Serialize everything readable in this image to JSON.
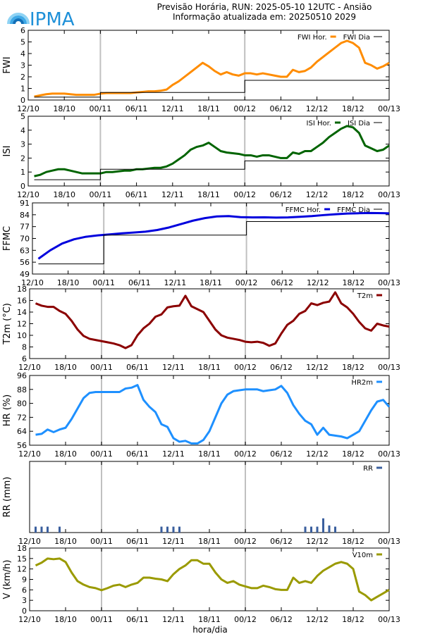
{
  "header": {
    "title": "Previsão Horária, RUN: 2025-05-10 12UTC - Ansião",
    "subtitle": "Informação atualizada em: 20250510 2029",
    "logo_text": "IPMA",
    "logo_color": "#1e90d8"
  },
  "chart_data": [
    {
      "type": "line",
      "ylabel": "FWI",
      "ylim": [
        0,
        6
      ],
      "yticks": [
        0,
        1,
        2,
        3,
        4,
        5,
        6
      ],
      "xlim": [
        0,
        60
      ],
      "xtick_labels": [
        "12/10",
        "18/10",
        "00/11",
        "06/11",
        "12/11",
        "18/11",
        "00/12",
        "06/12",
        "12/12",
        "18/12",
        "00/13"
      ],
      "day_markers": [
        12,
        36
      ],
      "series": [
        {
          "name": "FWI Hor.",
          "color": "#ff8c00",
          "style": "thick",
          "x": [
            1,
            2,
            3,
            4,
            5,
            6,
            7,
            8,
            9,
            10,
            11,
            12,
            13,
            14,
            15,
            16,
            17,
            18,
            19,
            20,
            21,
            22,
            23,
            24,
            25,
            26,
            27,
            28,
            29,
            30,
            31,
            32,
            33,
            34,
            35,
            36,
            37,
            38,
            39,
            40,
            41,
            42,
            43,
            44,
            45,
            46,
            47,
            48,
            49,
            50,
            51,
            52,
            53,
            54,
            55,
            56,
            57,
            58,
            59,
            60
          ],
          "y": [
            0.3,
            0.4,
            0.5,
            0.55,
            0.55,
            0.55,
            0.5,
            0.45,
            0.45,
            0.45,
            0.45,
            0.55,
            0.6,
            0.6,
            0.6,
            0.6,
            0.6,
            0.65,
            0.7,
            0.75,
            0.75,
            0.8,
            0.9,
            1.3,
            1.6,
            2.0,
            2.4,
            2.8,
            3.2,
            2.9,
            2.5,
            2.2,
            2.4,
            2.2,
            2.1,
            2.3,
            2.3,
            2.2,
            2.3,
            2.2,
            2.1,
            2.0,
            2.0,
            2.6,
            2.4,
            2.5,
            2.8,
            3.3,
            3.7,
            4.1,
            4.5,
            4.9,
            5.1,
            4.9,
            4.5,
            3.2,
            3.0,
            2.7,
            2.9,
            3.2
          ]
        },
        {
          "name": "FWI Dia",
          "color": "#000000",
          "style": "step",
          "x": [
            1,
            12,
            12,
            36,
            36,
            60
          ],
          "y": [
            0.25,
            0.25,
            0.65,
            0.65,
            1.7,
            1.7
          ]
        }
      ]
    },
    {
      "type": "line",
      "ylabel": "ISI",
      "ylim": [
        0,
        5
      ],
      "yticks": [
        0,
        1,
        2,
        3,
        4,
        5
      ],
      "xlim": [
        0,
        60
      ],
      "xtick_labels": [
        "12/10",
        "18/10",
        "00/11",
        "06/11",
        "12/11",
        "18/11",
        "00/12",
        "06/12",
        "12/12",
        "18/12",
        "00/13"
      ],
      "day_markers": [
        12,
        36
      ],
      "series": [
        {
          "name": "ISI Hor.",
          "color": "#006400",
          "style": "thick",
          "x": [
            1,
            2,
            3,
            4,
            5,
            6,
            7,
            8,
            9,
            10,
            11,
            12,
            13,
            14,
            15,
            16,
            17,
            18,
            19,
            20,
            21,
            22,
            23,
            24,
            25,
            26,
            27,
            28,
            29,
            30,
            31,
            32,
            33,
            34,
            35,
            36,
            37,
            38,
            39,
            40,
            41,
            42,
            43,
            44,
            45,
            46,
            47,
            48,
            49,
            50,
            51,
            52,
            53,
            54,
            55,
            56,
            57,
            58,
            59,
            60
          ],
          "y": [
            0.7,
            0.8,
            1.0,
            1.1,
            1.2,
            1.2,
            1.1,
            1.0,
            0.9,
            0.9,
            0.9,
            0.9,
            1.0,
            1.0,
            1.05,
            1.1,
            1.1,
            1.2,
            1.2,
            1.25,
            1.3,
            1.3,
            1.4,
            1.6,
            1.9,
            2.2,
            2.6,
            2.8,
            2.9,
            3.1,
            2.8,
            2.5,
            2.4,
            2.35,
            2.3,
            2.2,
            2.2,
            2.1,
            2.2,
            2.2,
            2.1,
            2.0,
            2.0,
            2.4,
            2.3,
            2.5,
            2.5,
            2.8,
            3.1,
            3.5,
            3.8,
            4.1,
            4.3,
            4.2,
            3.8,
            2.9,
            2.7,
            2.5,
            2.6,
            2.9
          ]
        },
        {
          "name": "ISI Dia",
          "color": "#000000",
          "style": "step",
          "x": [
            1,
            12,
            12,
            36,
            36,
            60
          ],
          "y": [
            0.45,
            0.45,
            1.2,
            1.2,
            1.8,
            1.8
          ]
        }
      ]
    },
    {
      "type": "line",
      "ylabel": "FFMC",
      "ylim": [
        49,
        91
      ],
      "yticks": [
        49,
        56,
        63,
        70,
        77,
        84,
        91
      ],
      "xlim": [
        0,
        60
      ],
      "xtick_labels": [
        "12/10",
        "18/10",
        "00/11",
        "06/11",
        "12/11",
        "18/11",
        "00/12",
        "06/12",
        "12/12",
        "18/12",
        "00/13"
      ],
      "day_markers": [
        12,
        36
      ],
      "series": [
        {
          "name": "FFMC Hor.",
          "color": "#0000dd",
          "style": "thick",
          "x": [
            1,
            3,
            5,
            7,
            9,
            11,
            13,
            15,
            17,
            19,
            21,
            23,
            25,
            27,
            29,
            31,
            33,
            35,
            37,
            39,
            41,
            43,
            45,
            47,
            49,
            51,
            53,
            55,
            57,
            59,
            60
          ],
          "y": [
            58,
            63,
            67,
            69.5,
            71,
            71.8,
            72.4,
            73,
            73.5,
            74,
            75,
            76.5,
            78.5,
            80.5,
            82,
            83,
            83.2,
            82.6,
            82.4,
            82.5,
            82.3,
            82.4,
            82.8,
            83.2,
            83.8,
            84.3,
            84.7,
            84.9,
            85,
            84.9,
            84.8
          ]
        },
        {
          "name": "FFMC Dia",
          "color": "#000000",
          "style": "step",
          "x": [
            1,
            12,
            12,
            36,
            36,
            60
          ],
          "y": [
            55,
            55,
            72,
            72,
            80,
            80
          ]
        }
      ]
    },
    {
      "type": "line",
      "ylabel": "T2m (°C)",
      "ylim": [
        6,
        18
      ],
      "yticks": [
        6,
        8,
        10,
        12,
        14,
        16,
        18
      ],
      "xlim": [
        0,
        60
      ],
      "xtick_labels": [
        "12/10",
        "18/10",
        "00/11",
        "06/11",
        "12/11",
        "18/11",
        "00/12",
        "06/12",
        "12/12",
        "18/12",
        "00/13"
      ],
      "day_markers": [
        12,
        36
      ],
      "series": [
        {
          "name": "T2m",
          "color": "#8b0000",
          "style": "thick",
          "x": [
            1,
            2,
            3,
            4,
            5,
            6,
            7,
            8,
            9,
            10,
            11,
            12,
            13,
            14,
            15,
            16,
            17,
            18,
            19,
            20,
            21,
            22,
            23,
            24,
            25,
            26,
            27,
            28,
            29,
            30,
            31,
            32,
            33,
            34,
            35,
            36,
            37,
            38,
            39,
            40,
            41,
            42,
            43,
            44,
            45,
            46,
            47,
            48,
            49,
            50,
            51,
            52,
            53,
            54,
            55,
            56,
            57,
            58,
            59,
            60
          ],
          "y": [
            15.5,
            15.1,
            14.9,
            14.9,
            14.2,
            13.7,
            12.5,
            11.0,
            9.9,
            9.4,
            9.2,
            9.0,
            8.8,
            8.6,
            8.3,
            7.8,
            8.3,
            10.0,
            11.2,
            12.0,
            13.2,
            13.6,
            14.8,
            15.0,
            15.1,
            16.8,
            15.0,
            14.5,
            14.0,
            12.5,
            11.0,
            10.0,
            9.6,
            9.4,
            9.2,
            8.9,
            8.8,
            8.9,
            8.7,
            8.2,
            8.6,
            10.3,
            11.8,
            12.5,
            13.7,
            14.2,
            15.5,
            15.2,
            15.6,
            15.8,
            17.4,
            15.5,
            14.8,
            13.7,
            12.3,
            11.2,
            10.8,
            12.0,
            11.7,
            11.5
          ]
        }
      ]
    },
    {
      "type": "line",
      "ylabel": "HR (%)",
      "ylim": [
        56,
        96
      ],
      "yticks": [
        56,
        64,
        72,
        80,
        88,
        96
      ],
      "xlim": [
        0,
        60
      ],
      "xtick_labels": [
        "12/10",
        "18/10",
        "00/11",
        "06/11",
        "12/11",
        "18/11",
        "00/12",
        "06/12",
        "12/12",
        "18/12",
        "00/13"
      ],
      "day_markers": [
        12,
        36
      ],
      "series": [
        {
          "name": "HR2m",
          "color": "#1e90ff",
          "style": "thick",
          "x": [
            1,
            2,
            3,
            4,
            5,
            6,
            7,
            8,
            9,
            10,
            11,
            12,
            13,
            14,
            15,
            16,
            17,
            18,
            19,
            20,
            21,
            22,
            23,
            24,
            25,
            26,
            27,
            28,
            29,
            30,
            31,
            32,
            33,
            34,
            35,
            36,
            37,
            38,
            39,
            40,
            41,
            42,
            43,
            44,
            45,
            46,
            47,
            48,
            49,
            50,
            51,
            52,
            53,
            54,
            55,
            56,
            57,
            58,
            59,
            60
          ],
          "y": [
            62,
            62.5,
            65,
            63.5,
            65,
            66,
            71,
            77,
            83,
            86,
            86.5,
            86.5,
            86.5,
            86.5,
            86.5,
            88.5,
            89,
            90.5,
            82,
            78,
            75,
            68,
            66.5,
            60,
            58,
            58.5,
            57,
            57,
            59,
            64,
            72,
            80,
            85,
            87,
            87.5,
            88,
            88,
            88,
            87,
            87.5,
            88,
            90,
            86,
            79,
            74,
            70,
            68,
            62,
            66,
            62,
            61.5,
            61,
            60,
            62,
            64,
            70,
            76,
            81,
            82,
            78
          ]
        }
      ]
    },
    {
      "type": "bar",
      "ylabel": "RR (mm)",
      "ylim": [
        0,
        12
      ],
      "yticks": [],
      "xlim": [
        0,
        60
      ],
      "xtick_labels": [
        "12/10",
        "18/10",
        "00/11",
        "06/11",
        "12/11",
        "18/11",
        "00/12",
        "06/12",
        "12/12",
        "18/12",
        "00/13"
      ],
      "day_markers": [
        12,
        36
      ],
      "series": [
        {
          "name": "RR",
          "color": "#3a5f9e",
          "style": "bar",
          "x": [
            1,
            2,
            3,
            5,
            22,
            23,
            24,
            25,
            46,
            47,
            48,
            49,
            50,
            51
          ],
          "y": [
            1,
            1,
            1,
            1,
            1,
            1,
            1,
            1,
            1,
            1,
            1,
            2.4,
            1.2,
            1
          ]
        }
      ]
    },
    {
      "type": "line",
      "ylabel": "V (km/h)",
      "ylim": [
        0,
        18
      ],
      "yticks": [
        0,
        3,
        6,
        9,
        12,
        15,
        18
      ],
      "xlim": [
        0,
        60
      ],
      "xtick_labels": [
        "12/10",
        "18/10",
        "00/11",
        "06/11",
        "12/11",
        "18/11",
        "00/12",
        "06/12",
        "12/12",
        "18/12",
        "00/13"
      ],
      "day_markers": [
        12,
        36
      ],
      "series": [
        {
          "name": "V10m",
          "color": "#9a9a00",
          "style": "thick",
          "x": [
            1,
            2,
            3,
            4,
            5,
            6,
            7,
            8,
            9,
            10,
            11,
            12,
            13,
            14,
            15,
            16,
            17,
            18,
            19,
            20,
            21,
            22,
            23,
            24,
            25,
            26,
            27,
            28,
            29,
            30,
            31,
            32,
            33,
            34,
            35,
            36,
            37,
            38,
            39,
            40,
            41,
            42,
            43,
            44,
            45,
            46,
            47,
            48,
            49,
            50,
            51,
            52,
            53,
            54,
            55,
            56,
            57,
            58,
            59,
            60
          ],
          "y": [
            13,
            13.8,
            15,
            14.8,
            15,
            14,
            11,
            8.5,
            7.5,
            6.8,
            6.5,
            5.9,
            6.5,
            7.2,
            7.5,
            6.8,
            7.5,
            8,
            9.5,
            9.5,
            9.2,
            9,
            8.5,
            10.5,
            12,
            13,
            14.5,
            14.5,
            13.5,
            13.5,
            11,
            9,
            8,
            8.5,
            7.5,
            7,
            6.5,
            6.5,
            7.2,
            6.8,
            6.2,
            6,
            6,
            9.5,
            8,
            8.5,
            8,
            10,
            11.5,
            12.5,
            13.5,
            14,
            13.5,
            12,
            5.5,
            4.5,
            3,
            4,
            5,
            6
          ]
        }
      ]
    }
  ],
  "xlabel": "hora/dia"
}
